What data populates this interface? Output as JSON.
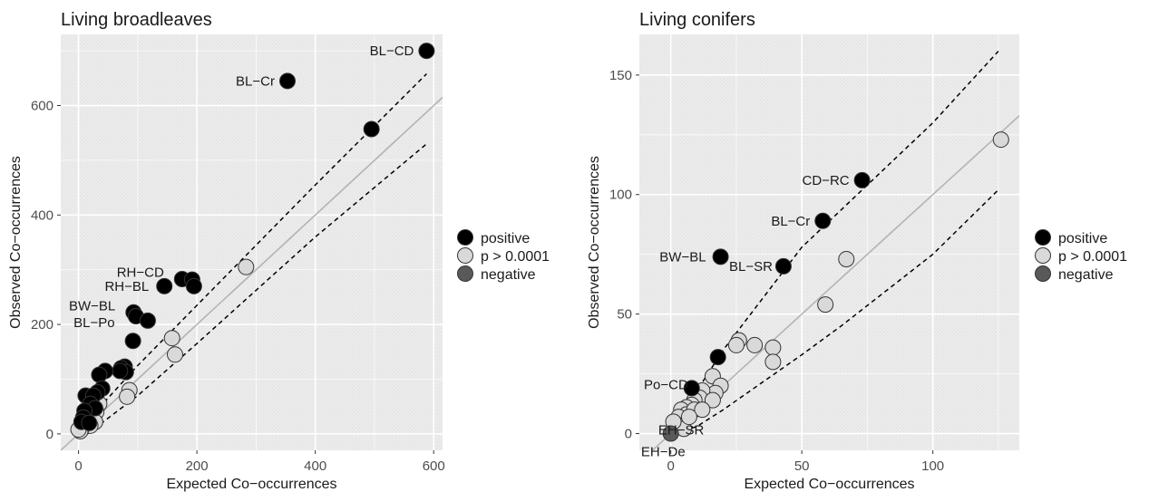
{
  "chart_data": [
    {
      "type": "scatter",
      "title": "Living broadleaves",
      "xlabel": "Expected Co−occurrences",
      "ylabel": "Observed Co−occurrences",
      "xlim": [
        -30,
        615
      ],
      "ylim": [
        -30,
        730
      ],
      "xticks": [
        0,
        200,
        400,
        600
      ],
      "yticks": [
        0,
        200,
        400,
        600
      ],
      "xtick_labels": [
        "0",
        "200",
        "400",
        "600"
      ],
      "ytick_labels": [
        "0",
        "200",
        "400",
        "600"
      ],
      "reference_lines": {
        "identity": [
          [
            -30,
            -30
          ],
          [
            615,
            615
          ]
        ],
        "upper": [
          [
            0,
            0
          ],
          [
            20,
            30
          ],
          [
            100,
            125
          ],
          [
            200,
            235
          ],
          [
            400,
            455
          ],
          [
            588,
            658
          ]
        ],
        "lower": [
          [
            15,
            0
          ],
          [
            100,
            70
          ],
          [
            200,
            165
          ],
          [
            400,
            360
          ],
          [
            588,
            530
          ]
        ]
      },
      "series": [
        {
          "name": "positive",
          "points": [
            [
              588,
              700
            ],
            [
              353,
              645
            ],
            [
              495,
              557
            ],
            [
              175,
              283
            ],
            [
              192,
              282
            ],
            [
              195,
              270
            ],
            [
              145,
              270
            ],
            [
              93,
              222
            ],
            [
              97,
              215
            ],
            [
              117,
              207
            ],
            [
              92,
              170
            ],
            [
              78,
              123
            ],
            [
              72,
              120
            ],
            [
              80,
              113
            ],
            [
              70,
              115
            ],
            [
              45,
              115
            ],
            [
              35,
              108
            ],
            [
              40,
              83
            ],
            [
              32,
              76
            ],
            [
              12,
              70
            ],
            [
              25,
              70
            ],
            [
              20,
              55
            ],
            [
              28,
              47
            ],
            [
              10,
              42
            ],
            [
              8,
              30
            ],
            [
              5,
              22
            ],
            [
              18,
              20
            ]
          ]
        },
        {
          "name": "p > 0.0001",
          "points": [
            [
              283,
              305
            ],
            [
              158,
              175
            ],
            [
              163,
              145
            ],
            [
              86,
              80
            ],
            [
              82,
              68
            ],
            [
              35,
              55
            ],
            [
              30,
              40
            ],
            [
              28,
              22
            ],
            [
              20,
              15
            ],
            [
              5,
              10
            ],
            [
              3,
              5
            ],
            [
              0,
              8
            ]
          ]
        },
        {
          "name": "negative",
          "points": []
        }
      ],
      "labels": [
        {
          "text": "BL−CD",
          "x": 588,
          "y": 700
        },
        {
          "text": "BL−Cr",
          "x": 353,
          "y": 645
        },
        {
          "text": "RH−CD",
          "x": 175,
          "y": 290
        },
        {
          "text": "RH−BL",
          "x": 145,
          "y": 268
        },
        {
          "text": "BW−BL",
          "x": 93,
          "y": 229
        },
        {
          "text": "BL−Po",
          "x": 92,
          "y": 200
        }
      ]
    },
    {
      "type": "scatter",
      "title": "Living conifers",
      "xlabel": "Expected Co−occurrences",
      "ylabel": "Observed Co−occurrences",
      "xlim": [
        -12,
        133
      ],
      "ylim": [
        -7,
        167
      ],
      "xticks": [
        0,
        50,
        100
      ],
      "yticks": [
        0,
        50,
        100,
        150
      ],
      "xtick_labels": [
        "0",
        "50",
        "100"
      ],
      "ytick_labels": [
        "0",
        "50",
        "100",
        "150"
      ],
      "reference_lines": {
        "identity": [
          [
            -12,
            -12
          ],
          [
            133,
            133
          ]
        ],
        "upper": [
          [
            0,
            2
          ],
          [
            10,
            18
          ],
          [
            20,
            35
          ],
          [
            50,
            78
          ],
          [
            100,
            130
          ],
          [
            125,
            160
          ]
        ],
        "lower": [
          [
            2,
            0
          ],
          [
            10,
            3
          ],
          [
            20,
            10
          ],
          [
            50,
            33
          ],
          [
            65,
            45
          ],
          [
            100,
            75
          ],
          [
            125,
            102
          ]
        ]
      },
      "series": [
        {
          "name": "positive",
          "points": [
            [
              73,
              106
            ],
            [
              58,
              89
            ],
            [
              19,
              74
            ],
            [
              43,
              70
            ],
            [
              18,
              32
            ],
            [
              8,
              19
            ]
          ]
        },
        {
          "name": "p > 0.0001",
          "points": [
            [
              126,
              123
            ],
            [
              67,
              73
            ],
            [
              59,
              54
            ],
            [
              26,
              39
            ],
            [
              25,
              37
            ],
            [
              32,
              37
            ],
            [
              39,
              36
            ],
            [
              39,
              30
            ],
            [
              16,
              24
            ],
            [
              19,
              20
            ],
            [
              17,
              17
            ],
            [
              12,
              18
            ],
            [
              11,
              15
            ],
            [
              9,
              14
            ],
            [
              16,
              14
            ],
            [
              8,
              12
            ],
            [
              6,
              11
            ],
            [
              4,
              10
            ],
            [
              6,
              8
            ],
            [
              3,
              7
            ],
            [
              9,
              10
            ],
            [
              12,
              10
            ],
            [
              2,
              4
            ],
            [
              4,
              3
            ],
            [
              5,
              2
            ],
            [
              1,
              5
            ],
            [
              7,
              7
            ]
          ]
        },
        {
          "name": "negative",
          "points": [
            [
              0,
              0
            ]
          ]
        }
      ],
      "labels": [
        {
          "text": "CD−RC",
          "x": 73,
          "y": 106
        },
        {
          "text": "BL−Cr",
          "x": 58,
          "y": 89
        },
        {
          "text": "BW−BL",
          "x": 19,
          "y": 74
        },
        {
          "text": "BL−SR",
          "x": 43,
          "y": 70
        },
        {
          "text": "Po−CD",
          "x": 8,
          "y": 19
        },
        {
          "text": "EH−SR",
          "x": 3,
          "y": 0
        },
        {
          "text": "EH−De",
          "x": 0,
          "y": -5
        }
      ]
    }
  ],
  "legend": {
    "items": [
      {
        "label": "positive",
        "color": "#000000"
      },
      {
        "label": "p > 0.0001",
        "color": "#d9d9d9"
      },
      {
        "label": "negative",
        "color": "#595959"
      }
    ]
  },
  "colors": {
    "panel_bg": "#ebebeb",
    "grid": "#ffffff",
    "identity_line": "#b3b3b3",
    "marker_stroke": "#333333"
  }
}
